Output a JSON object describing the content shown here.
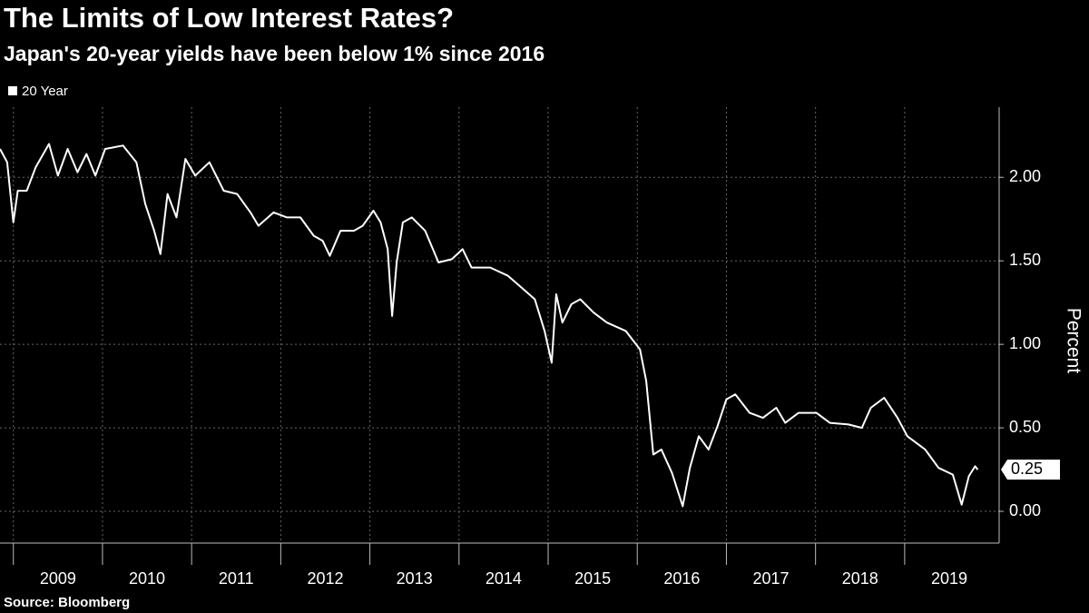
{
  "chart_data": {
    "type": "line",
    "title": "The Limits of Low Interest Rates?",
    "subtitle": "Japan's 20-year yields have been below 1% since 2016",
    "source": "Source: Bloomberg",
    "y_label": "Percent",
    "legend": "top-left",
    "grid": true,
    "xlim": [
      2008.85,
      2020.05
    ],
    "xticks": [
      2009,
      2010,
      2011,
      2012,
      2013,
      2014,
      2015,
      2016,
      2017,
      2018,
      2019
    ],
    "ylim": [
      -0.19,
      2.42
    ],
    "yticks": [
      {
        "value": 0,
        "label": "0.00"
      },
      {
        "value": 0.5,
        "label": "0.50"
      },
      {
        "value": 1,
        "label": "1.00"
      },
      {
        "value": 1.5,
        "label": "1.50"
      },
      {
        "value": 2,
        "label": "2.00"
      }
    ],
    "x": [
      2008.85,
      2008.93,
      2009.0,
      2009.05,
      2009.15,
      2009.25,
      2009.4,
      2009.5,
      2009.61,
      2009.72,
      2009.82,
      2009.92,
      2010.03,
      2010.23,
      2010.38,
      2010.48,
      2010.58,
      2010.65,
      2010.73,
      2010.83,
      2010.93,
      2011.04,
      2011.2,
      2011.36,
      2011.51,
      2011.66,
      2011.75,
      2011.92,
      2012.07,
      2012.22,
      2012.37,
      2012.47,
      2012.55,
      2012.67,
      2012.82,
      2012.92,
      2013.04,
      2013.12,
      2013.2,
      2013.25,
      2013.3,
      2013.37,
      2013.47,
      2013.62,
      2013.77,
      2013.92,
      2014.04,
      2014.14,
      2014.35,
      2014.55,
      2014.7,
      2014.85,
      2014.96,
      2015.04,
      2015.09,
      2015.16,
      2015.26,
      2015.36,
      2015.51,
      2015.66,
      2015.87,
      2016.03,
      2016.1,
      2016.18,
      2016.27,
      2016.39,
      2016.51,
      2016.59,
      2016.69,
      2016.8,
      2016.9,
      2017.0,
      2017.1,
      2017.26,
      2017.41,
      2017.56,
      2017.66,
      2017.81,
      2018.01,
      2018.16,
      2018.37,
      2018.52,
      2018.62,
      2018.77,
      2018.92,
      2019.03,
      2019.23,
      2019.38,
      2019.54,
      2019.64,
      2019.72,
      2019.79,
      2019.82
    ],
    "series": [
      {
        "name": "20 Year",
        "color": "#ffffff",
        "values": [
          2.17,
          2.09,
          1.73,
          1.92,
          1.92,
          2.06,
          2.2,
          2.01,
          2.17,
          2.03,
          2.14,
          2.01,
          2.17,
          2.19,
          2.09,
          1.84,
          1.68,
          1.54,
          1.9,
          1.76,
          2.11,
          2.01,
          2.09,
          1.92,
          1.9,
          1.79,
          1.71,
          1.79,
          1.76,
          1.76,
          1.65,
          1.62,
          1.53,
          1.68,
          1.68,
          1.71,
          1.8,
          1.73,
          1.57,
          1.17,
          1.49,
          1.73,
          1.76,
          1.68,
          1.49,
          1.51,
          1.57,
          1.46,
          1.46,
          1.41,
          1.34,
          1.27,
          1.08,
          0.89,
          1.3,
          1.13,
          1.24,
          1.27,
          1.19,
          1.13,
          1.08,
          0.97,
          0.78,
          0.34,
          0.37,
          0.23,
          0.03,
          0.26,
          0.45,
          0.37,
          0.51,
          0.67,
          0.7,
          0.59,
          0.56,
          0.62,
          0.53,
          0.59,
          0.59,
          0.53,
          0.52,
          0.5,
          0.62,
          0.68,
          0.56,
          0.45,
          0.37,
          0.26,
          0.22,
          0.04,
          0.21,
          0.27,
          0.25
        ]
      }
    ]
  }
}
